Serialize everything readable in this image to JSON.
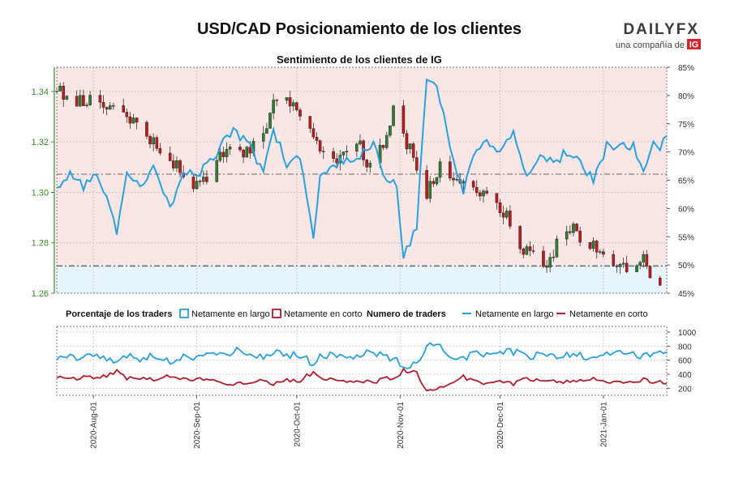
{
  "header": {
    "title": "USD/CAD Posicionamiento de los clientes",
    "subtitle": "Sentimiento de los clientes de IG",
    "brand": "DAILYFX",
    "brand_tag": "una compañía de",
    "brand_ig": "IG"
  },
  "colors": {
    "long": "#29a0e0",
    "short": "#b31c2b",
    "long_zone": "#e8f4fb",
    "short_zone": "#fbe6e6",
    "price_axis": "#3a8a2a",
    "candle_up": "#2e7d32",
    "candle_down": "#b71c1c"
  },
  "chart_data": [
    {
      "type": "line",
      "name": "price-and-sentiment",
      "y_left": {
        "ticks": [
          "1.26",
          "1.28",
          "1.30",
          "1.32",
          "1.34"
        ],
        "tick_values": [
          1.26,
          1.28,
          1.3,
          1.32,
          1.34
        ],
        "ylim": [
          1.26,
          1.3496
        ]
      },
      "y_right": {
        "ticks": [
          "45%",
          "50%",
          "55%",
          "60%",
          "65%",
          "70%",
          "75%",
          "80%",
          "85%"
        ],
        "tick_values": [
          45,
          50,
          55,
          60,
          65,
          70,
          75,
          80,
          85
        ],
        "ylim": [
          45,
          85
        ]
      },
      "reference_lines": [
        1.2708,
        1.3072
      ],
      "price_close_anchors": [
        [
          "2020-07-21",
          1.34
        ],
        [
          "2020-07-27",
          1.336
        ],
        [
          "2020-08-03",
          1.338
        ],
        [
          "2020-08-07",
          1.332
        ],
        [
          "2020-08-12",
          1.33
        ],
        [
          "2020-08-17",
          1.32
        ],
        [
          "2020-08-21",
          1.318
        ],
        [
          "2020-08-26",
          1.31
        ],
        [
          "2020-08-31",
          1.304
        ],
        [
          "2020-09-04",
          1.307
        ],
        [
          "2020-09-09",
          1.315
        ],
        [
          "2020-09-14",
          1.316
        ],
        [
          "2020-09-18",
          1.318
        ],
        [
          "2020-09-23",
          1.33
        ],
        [
          "2020-09-25",
          1.338
        ],
        [
          "2020-09-30",
          1.333
        ],
        [
          "2020-10-05",
          1.326
        ],
        [
          "2020-10-09",
          1.314
        ],
        [
          "2020-10-14",
          1.314
        ],
        [
          "2020-10-19",
          1.32
        ],
        [
          "2020-10-23",
          1.31
        ],
        [
          "2020-10-27",
          1.318
        ],
        [
          "2020-10-30",
          1.333
        ],
        [
          "2020-11-03",
          1.32
        ],
        [
          "2020-11-06",
          1.31
        ],
        [
          "2020-11-09",
          1.3
        ],
        [
          "2020-11-13",
          1.31
        ],
        [
          "2020-11-18",
          1.306
        ],
        [
          "2020-11-23",
          1.302
        ],
        [
          "2020-11-26",
          1.299
        ],
        [
          "2020-11-30",
          1.297
        ],
        [
          "2020-12-04",
          1.288
        ],
        [
          "2020-12-08",
          1.278
        ],
        [
          "2020-12-11",
          1.276
        ],
        [
          "2020-12-15",
          1.272
        ],
        [
          "2020-12-18",
          1.28
        ],
        [
          "2020-12-22",
          1.286
        ],
        [
          "2020-12-24",
          1.283
        ],
        [
          "2020-12-30",
          1.278
        ],
        [
          "2021-01-05",
          1.272
        ],
        [
          "2021-01-08",
          1.27
        ],
        [
          "2021-01-12",
          1.275
        ],
        [
          "2021-01-15",
          1.269
        ],
        [
          "2021-01-18",
          1.266
        ]
      ],
      "long_pct_anchors": [
        [
          "2020-07-21",
          63
        ],
        [
          "2020-07-25",
          66
        ],
        [
          "2020-07-29",
          64
        ],
        [
          "2020-08-02",
          66
        ],
        [
          "2020-08-06",
          60
        ],
        [
          "2020-08-08",
          56
        ],
        [
          "2020-08-11",
          67
        ],
        [
          "2020-08-15",
          64
        ],
        [
          "2020-08-19",
          67
        ],
        [
          "2020-08-24",
          60
        ],
        [
          "2020-08-28",
          67
        ],
        [
          "2020-09-01",
          66
        ],
        [
          "2020-09-05",
          68
        ],
        [
          "2020-09-09",
          72
        ],
        [
          "2020-09-12",
          74
        ],
        [
          "2020-09-17",
          71
        ],
        [
          "2020-09-21",
          66
        ],
        [
          "2020-09-24",
          74
        ],
        [
          "2020-09-28",
          68
        ],
        [
          "2020-10-02",
          69
        ],
        [
          "2020-10-06",
          55
        ],
        [
          "2020-10-08",
          66
        ],
        [
          "2020-10-13",
          68
        ],
        [
          "2020-10-16",
          69
        ],
        [
          "2020-10-20",
          69
        ],
        [
          "2020-10-24",
          72
        ],
        [
          "2020-10-27",
          66
        ],
        [
          "2020-10-31",
          64
        ],
        [
          "2020-11-02",
          51
        ],
        [
          "2020-11-06",
          57
        ],
        [
          "2020-11-09",
          83
        ],
        [
          "2020-11-12",
          82
        ],
        [
          "2020-11-16",
          71
        ],
        [
          "2020-11-20",
          63
        ],
        [
          "2020-11-24",
          71
        ],
        [
          "2020-11-27",
          72
        ],
        [
          "2020-12-01",
          70
        ],
        [
          "2020-12-05",
          73
        ],
        [
          "2020-12-09",
          66
        ],
        [
          "2020-12-13",
          69
        ],
        [
          "2020-12-17",
          68
        ],
        [
          "2020-12-21",
          70
        ],
        [
          "2020-12-25",
          68
        ],
        [
          "2020-12-29",
          65
        ],
        [
          "2021-01-02",
          71
        ],
        [
          "2021-01-06",
          71
        ],
        [
          "2021-01-10",
          71
        ],
        [
          "2021-01-13",
          67
        ],
        [
          "2021-01-16",
          72
        ],
        [
          "2021-01-18",
          71
        ],
        [
          "2021-01-20",
          73
        ]
      ],
      "legend": [
        {
          "label": "Porcentaje de los traders",
          "kind": "heading"
        },
        {
          "label": "Netamente en largo",
          "kind": "box",
          "color": "#29a0e0"
        },
        {
          "label": "Netamente en corto",
          "kind": "box",
          "color": "#b31c2b"
        }
      ]
    },
    {
      "type": "line",
      "name": "trader-counts",
      "y_right": {
        "ticks": [
          "200",
          "400",
          "600",
          "800",
          "1000"
        ],
        "tick_values": [
          200,
          400,
          600,
          800,
          1000
        ],
        "ylim": [
          100,
          1080
        ]
      },
      "x_dates": [
        "2020-08-01",
        "2020-09-01",
        "2020-10-01",
        "2020-11-01",
        "2020-12-01",
        "2021-01-01"
      ],
      "x_labels": [
        "2020-Aug-01",
        "2020-Sep-01",
        "2020-Oct-01",
        "2020-Nov-01",
        "2020-Dec-01",
        "2021-Jan-01"
      ],
      "x_range": [
        "2020-07-21",
        "2021-01-20"
      ],
      "legend": [
        {
          "label": "Numero de traders",
          "kind": "heading"
        },
        {
          "label": "Netamente en largo",
          "kind": "line",
          "color": "#29a0e0"
        },
        {
          "label": "Netamente en corto",
          "kind": "line",
          "color": "#b31c2b"
        }
      ]
    }
  ]
}
